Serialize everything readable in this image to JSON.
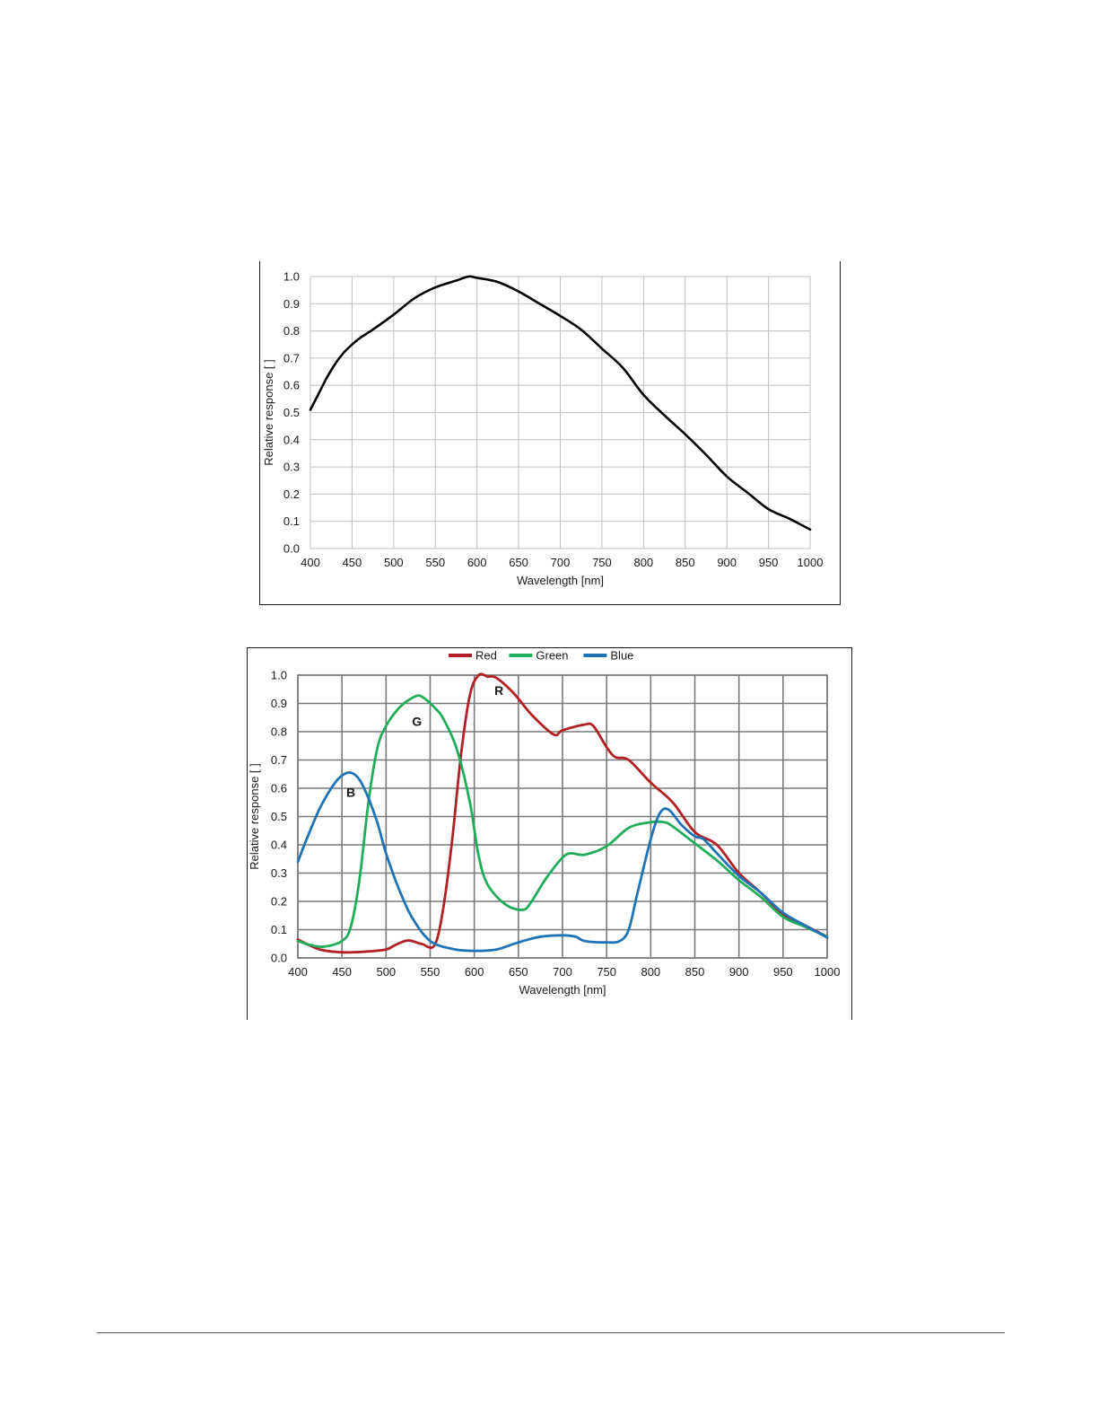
{
  "chart_data": [
    {
      "type": "line",
      "title": "",
      "xlabel": "Wavelength [nm]",
      "ylabel": "Relative response [ ]",
      "xlim": [
        400,
        1000
      ],
      "ylim": [
        0,
        1
      ],
      "xticks": [
        "400",
        "450",
        "500",
        "550",
        "600",
        "650",
        "700",
        "750",
        "800",
        "850",
        "900",
        "950",
        "1000"
      ],
      "yticks": [
        "0.0",
        "0.1",
        "0.2",
        "0.3",
        "0.4",
        "0.5",
        "0.6",
        "0.7",
        "0.8",
        "0.9",
        "1.0"
      ],
      "grid": true,
      "legend": "none",
      "series": [
        {
          "color": "#000000",
          "x": [
            400,
            410,
            420,
            430,
            440,
            450,
            460,
            475,
            500,
            525,
            550,
            575,
            590,
            600,
            625,
            650,
            675,
            700,
            725,
            750,
            775,
            800,
            825,
            850,
            875,
            900,
            925,
            950,
            975,
            1000
          ],
          "y": [
            0.51,
            0.57,
            0.63,
            0.68,
            0.72,
            0.75,
            0.775,
            0.805,
            0.86,
            0.92,
            0.96,
            0.985,
            1.0,
            0.995,
            0.98,
            0.945,
            0.9,
            0.855,
            0.805,
            0.735,
            0.665,
            0.565,
            0.49,
            0.42,
            0.345,
            0.265,
            0.205,
            0.145,
            0.11,
            0.07
          ]
        }
      ]
    },
    {
      "type": "line",
      "title": "",
      "xlabel": "Wavelength [nm]",
      "ylabel": "Relative response [ ]",
      "xlim": [
        400,
        1000
      ],
      "ylim": [
        0,
        1
      ],
      "xticks": [
        "400",
        "450",
        "500",
        "550",
        "600",
        "650",
        "700",
        "750",
        "800",
        "850",
        "900",
        "950",
        "1000"
      ],
      "yticks": [
        "0.0",
        "0.1",
        "0.2",
        "0.3",
        "0.4",
        "0.5",
        "0.6",
        "0.7",
        "0.8",
        "0.9",
        "1.0"
      ],
      "grid": true,
      "legend": "top-center",
      "annotations": [
        {
          "text": "R",
          "x": 628,
          "y": 0.93
        },
        {
          "text": "G",
          "x": 535,
          "y": 0.82
        },
        {
          "text": "B",
          "x": 460,
          "y": 0.57
        }
      ],
      "series": [
        {
          "name": "Red",
          "color": "#b21f24",
          "x": [
            400,
            425,
            450,
            475,
            500,
            510,
            525,
            540,
            555,
            565,
            575,
            585,
            595,
            605,
            615,
            625,
            645,
            665,
            690,
            700,
            725,
            735,
            750,
            760,
            775,
            800,
            825,
            850,
            875,
            900,
            925,
            950,
            975,
            1000
          ],
          "y": [
            0.065,
            0.03,
            0.02,
            0.022,
            0.03,
            0.045,
            0.062,
            0.05,
            0.045,
            0.18,
            0.42,
            0.72,
            0.93,
            1.0,
            0.995,
            0.99,
            0.935,
            0.86,
            0.79,
            0.805,
            0.825,
            0.82,
            0.745,
            0.71,
            0.7,
            0.62,
            0.55,
            0.445,
            0.4,
            0.3,
            0.23,
            0.155,
            0.115,
            0.075
          ]
        },
        {
          "name": "Green",
          "color": "#1fad5a",
          "x": [
            400,
            415,
            430,
            450,
            460,
            470,
            480,
            490,
            500,
            515,
            530,
            540,
            555,
            565,
            580,
            595,
            605,
            615,
            635,
            655,
            665,
            680,
            700,
            710,
            725,
            750,
            775,
            800,
            815,
            825,
            850,
            875,
            900,
            925,
            950,
            975,
            1000
          ],
          "y": [
            0.06,
            0.045,
            0.04,
            0.06,
            0.11,
            0.28,
            0.55,
            0.74,
            0.82,
            0.885,
            0.92,
            0.925,
            0.885,
            0.845,
            0.74,
            0.55,
            0.36,
            0.26,
            0.19,
            0.17,
            0.2,
            0.275,
            0.355,
            0.37,
            0.365,
            0.395,
            0.46,
            0.48,
            0.48,
            0.465,
            0.405,
            0.345,
            0.275,
            0.215,
            0.145,
            0.11,
            0.075
          ]
        },
        {
          "name": "Blue",
          "color": "#1f73b5",
          "x": [
            400,
            410,
            425,
            440,
            450,
            460,
            470,
            480,
            490,
            500,
            515,
            530,
            550,
            575,
            600,
            625,
            650,
            675,
            700,
            715,
            725,
            750,
            765,
            775,
            785,
            800,
            810,
            820,
            835,
            850,
            860,
            875,
            900,
            925,
            950,
            975,
            1000
          ],
          "y": [
            0.34,
            0.42,
            0.53,
            0.61,
            0.645,
            0.655,
            0.63,
            0.565,
            0.48,
            0.37,
            0.24,
            0.14,
            0.06,
            0.032,
            0.025,
            0.03,
            0.055,
            0.075,
            0.08,
            0.075,
            0.06,
            0.055,
            0.06,
            0.1,
            0.23,
            0.42,
            0.51,
            0.525,
            0.47,
            0.43,
            0.42,
            0.37,
            0.29,
            0.23,
            0.16,
            0.115,
            0.072
          ]
        }
      ]
    }
  ]
}
